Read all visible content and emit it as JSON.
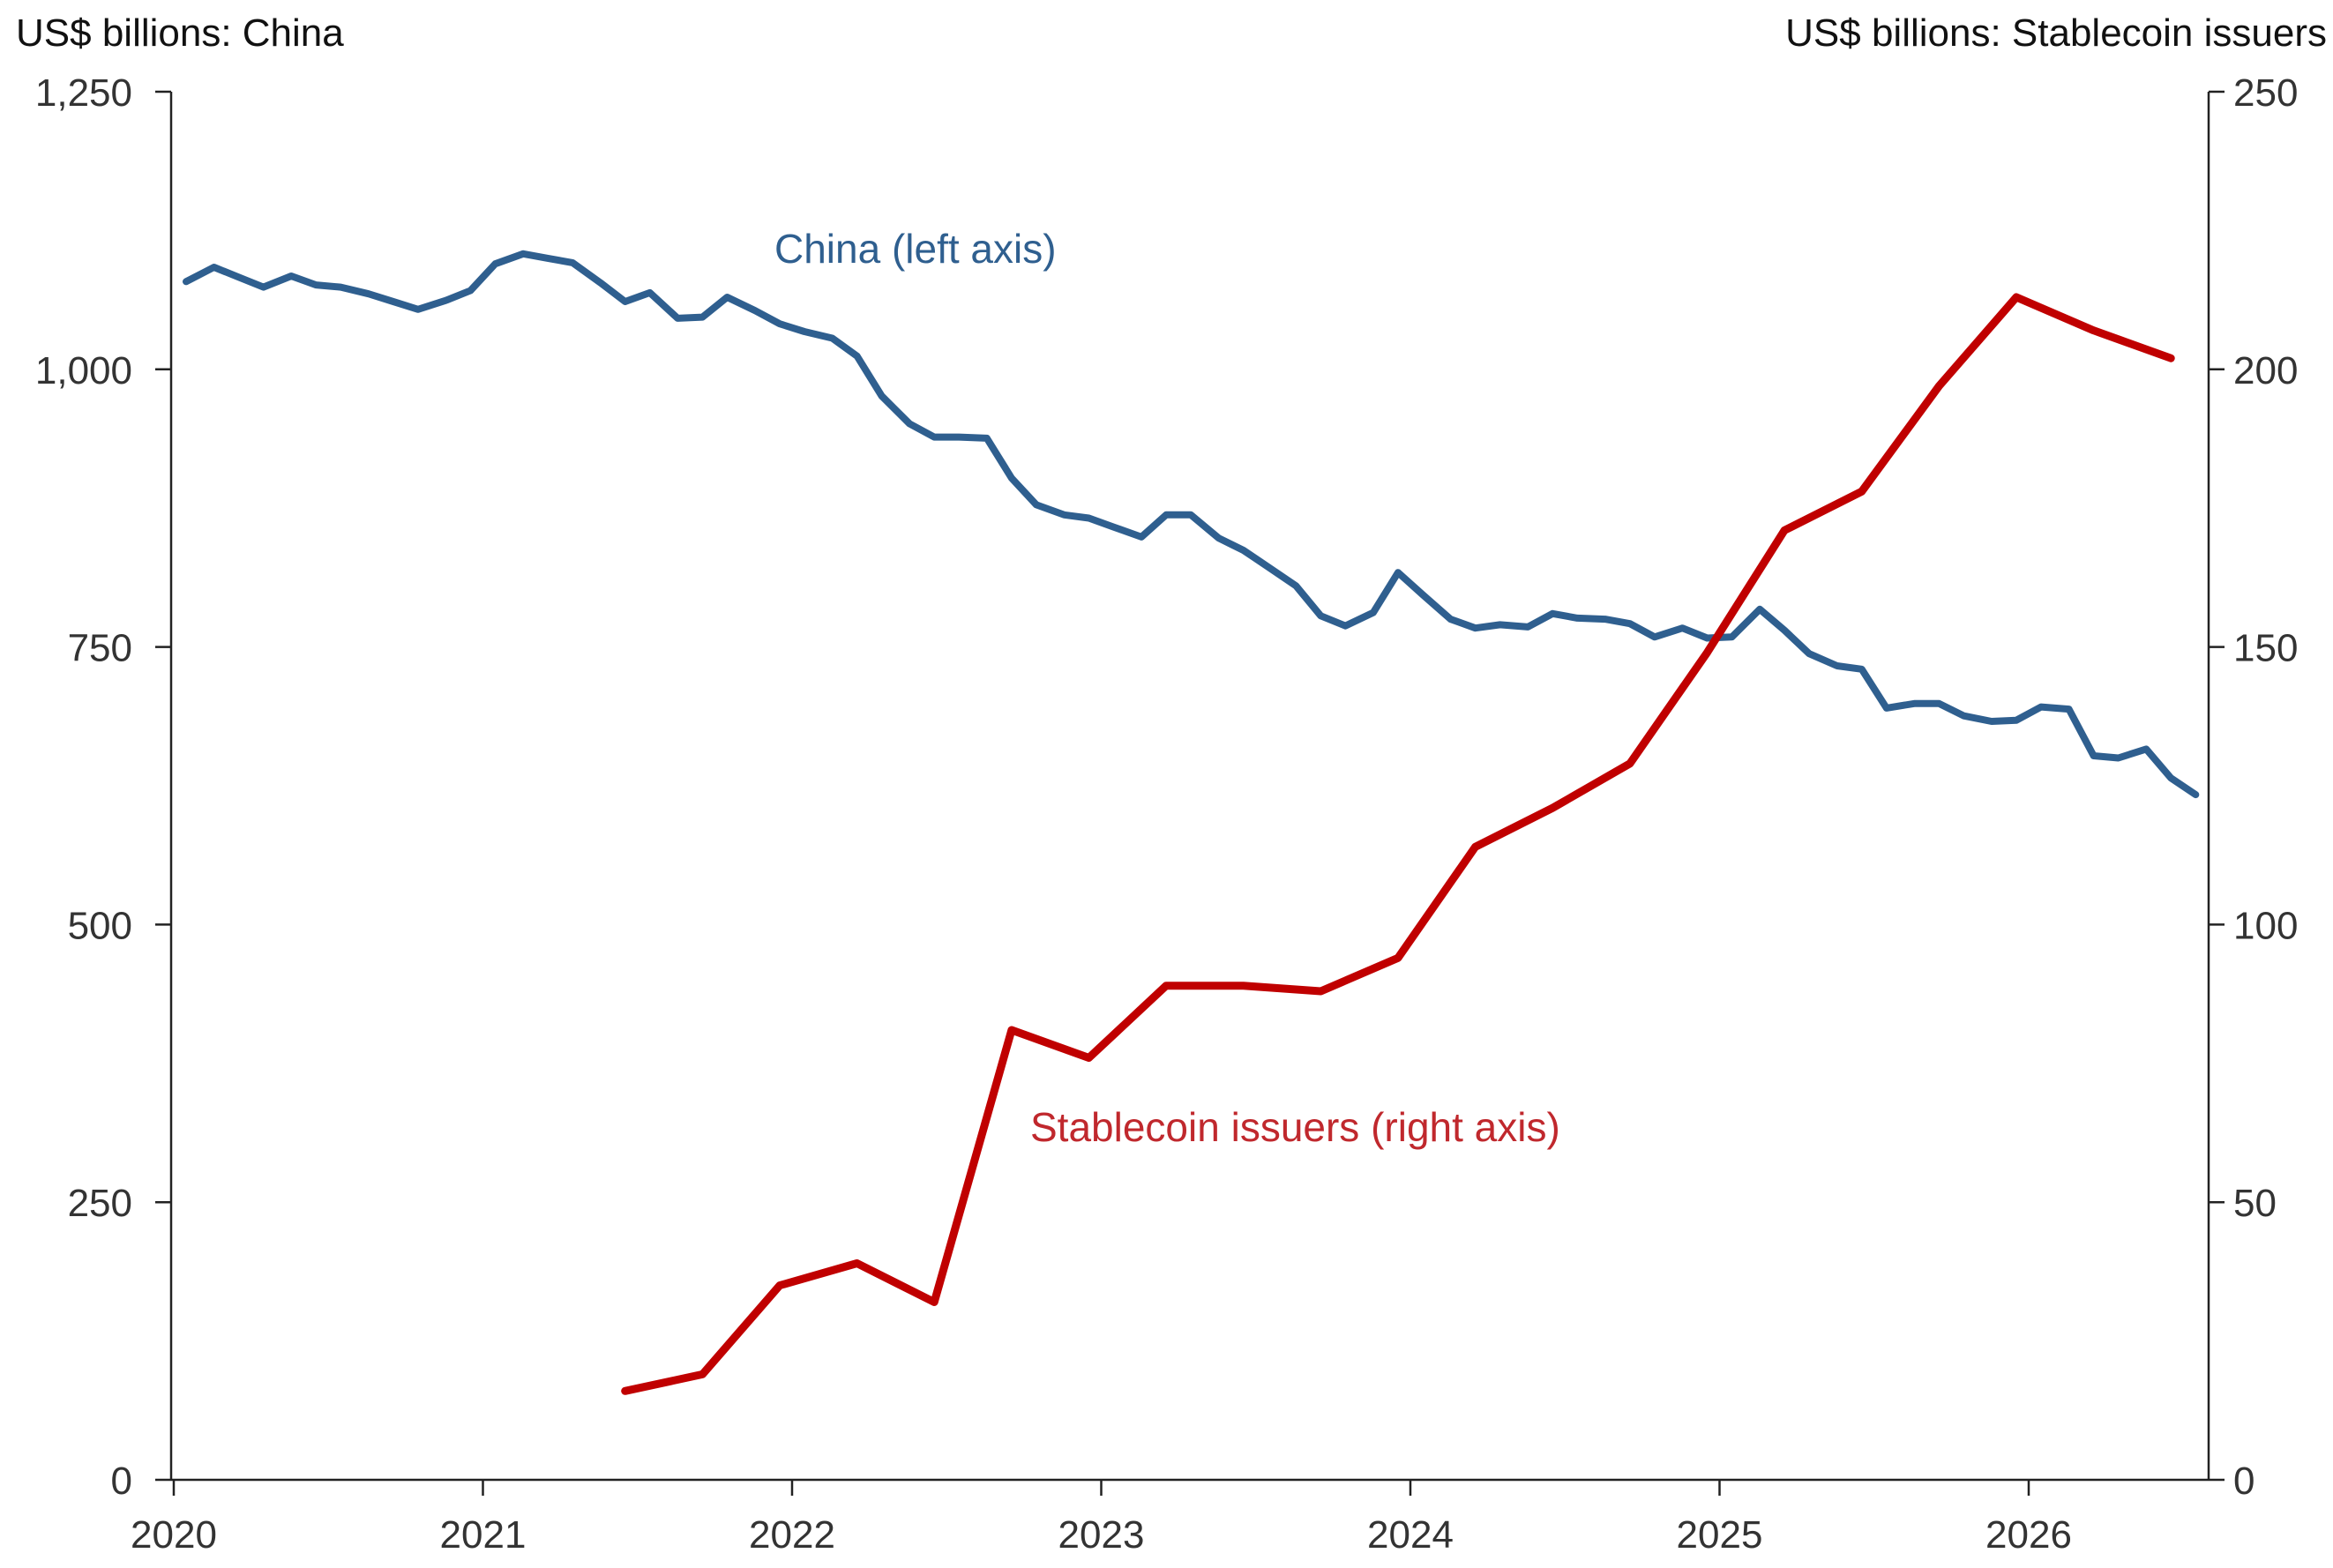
{
  "chart_data": {
    "type": "line",
    "left_axis_title": "US$ billions: China",
    "right_axis_title": "US$ billions: Stablecoin issuers",
    "left_ylim": [
      0,
      1250
    ],
    "left_yticks": [
      0,
      250,
      500,
      750,
      1000,
      1250
    ],
    "left_ytick_labels": [
      "0",
      "250",
      "500",
      "750",
      "1,000",
      "1,250"
    ],
    "right_ylim": [
      0,
      250
    ],
    "right_yticks": [
      0,
      50,
      100,
      150,
      200,
      250
    ],
    "right_ytick_labels": [
      "0",
      "50",
      "100",
      "150",
      "200",
      "250"
    ],
    "xlim": [
      2020.0,
      2026.65
    ],
    "xticks": [
      2020,
      2021,
      2022,
      2023,
      2024,
      2025,
      2026
    ],
    "xtick_labels": [
      "2020",
      "2021",
      "2022",
      "2023",
      "2024",
      "2025",
      "2026"
    ],
    "grid": false,
    "series": [
      {
        "name": "China (left axis)",
        "axis": "left",
        "color": "#2f5f8f",
        "x": [
          2020.04,
          2020.13,
          2020.21,
          2020.29,
          2020.38,
          2020.46,
          2020.54,
          2020.63,
          2020.71,
          2020.79,
          2020.88,
          2020.96,
          2021.04,
          2021.13,
          2021.21,
          2021.29,
          2021.38,
          2021.46,
          2021.54,
          2021.63,
          2021.71,
          2021.79,
          2021.88,
          2021.96,
          2022.04,
          2022.13,
          2022.21,
          2022.29,
          2022.38,
          2022.46,
          2022.54,
          2022.63,
          2022.71,
          2022.79,
          2022.88,
          2022.96,
          2023.04,
          2023.13,
          2023.21,
          2023.29,
          2023.38,
          2023.46,
          2023.54,
          2023.63,
          2023.71,
          2023.79,
          2023.88,
          2023.96,
          2024.04,
          2024.13,
          2024.21,
          2024.29,
          2024.38,
          2024.46,
          2024.54,
          2024.63,
          2024.71,
          2024.79,
          2024.88,
          2024.96,
          2025.04,
          2025.13,
          2025.21,
          2025.29,
          2025.38,
          2025.46,
          2025.54,
          2025.63,
          2025.71,
          2025.79,
          2025.88,
          2025.96,
          2026.04,
          2026.13,
          2026.21,
          2026.29,
          2026.38,
          2026.46,
          2026.54
        ],
        "values": [
          1079,
          1092,
          1083,
          1074,
          1084,
          1076,
          1074,
          1068,
          1061,
          1054,
          1062,
          1071,
          1095,
          1104,
          1100,
          1096,
          1078,
          1061,
          1069,
          1046,
          1047,
          1065,
          1053,
          1041,
          1034,
          1028,
          1012,
          976,
          951,
          939,
          939,
          938,
          902,
          878,
          869,
          866,
          858,
          849,
          869,
          869,
          848,
          837,
          822,
          805,
          778,
          769,
          781,
          817,
          797,
          775,
          767,
          770,
          768,
          780,
          776,
          775,
          771,
          759,
          767,
          758,
          759,
          784,
          765,
          744,
          733,
          730,
          695,
          699,
          699,
          688,
          683,
          684,
          696,
          694,
          652,
          650,
          658,
          632,
          617
        ]
      },
      {
        "name": "Stablecoin issuers (right axis)",
        "axis": "right",
        "color": "#c00000",
        "x": [
          2021.46,
          2021.71,
          2021.96,
          2022.21,
          2022.46,
          2022.71,
          2022.96,
          2023.21,
          2023.46,
          2023.71,
          2023.96,
          2024.21,
          2024.46,
          2024.71,
          2024.96,
          2025.21,
          2025.46,
          2025.71,
          2025.96,
          2026.21,
          2026.46
        ],
        "values": [
          16,
          19,
          35,
          39,
          32,
          81,
          76,
          89,
          89,
          88,
          94,
          114,
          121,
          129,
          149,
          171,
          178,
          197,
          213,
          207,
          202
        ]
      }
    ]
  }
}
